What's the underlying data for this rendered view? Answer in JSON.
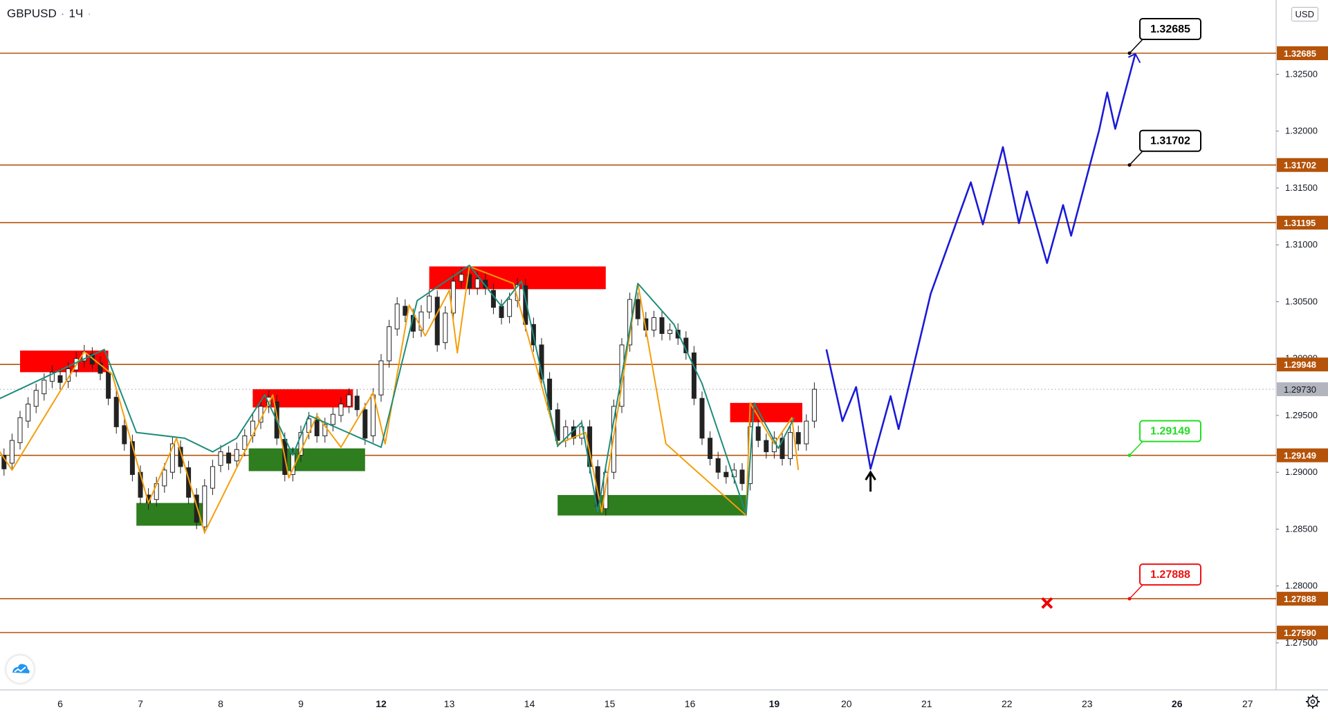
{
  "header": {
    "symbol": "GBPUSD",
    "interval": "1Ч",
    "currency_badge": "USD"
  },
  "chart_data": {
    "type": "candlestick",
    "title": "GBPUSD · 1Ч",
    "xlabel": "",
    "ylabel": "",
    "ylim": [
      1.272,
      1.3335
    ],
    "x_ticks": [
      {
        "label": "6",
        "day": 6,
        "bold": false
      },
      {
        "label": "7",
        "day": 7,
        "bold": false
      },
      {
        "label": "8",
        "day": 8,
        "bold": false
      },
      {
        "label": "9",
        "day": 9,
        "bold": false
      },
      {
        "label": "12",
        "day": 10,
        "bold": true
      },
      {
        "label": "13",
        "day": 10.85,
        "bold": false
      },
      {
        "label": "14",
        "day": 11.85,
        "bold": false
      },
      {
        "label": "15",
        "day": 12.85,
        "bold": false
      },
      {
        "label": "16",
        "day": 13.85,
        "bold": false
      },
      {
        "label": "19",
        "day": 14.9,
        "bold": true
      },
      {
        "label": "20",
        "day": 15.8,
        "bold": false
      },
      {
        "label": "21",
        "day": 16.8,
        "bold": false
      },
      {
        "label": "22",
        "day": 17.8,
        "bold": false
      },
      {
        "label": "23",
        "day": 18.8,
        "bold": false
      },
      {
        "label": "26",
        "day": 19.92,
        "bold": true
      },
      {
        "label": "27",
        "day": 20.8,
        "bold": false
      }
    ],
    "y_ticks": [
      "1.27500",
      "1.28000",
      "1.28500",
      "1.29000",
      "1.29500",
      "1.30000",
      "1.30500",
      "1.31000",
      "1.31500",
      "1.32000",
      "1.32500"
    ],
    "horizontal_levels": [
      {
        "price": 1.32685,
        "label": "1.32685"
      },
      {
        "price": 1.31702,
        "label": "1.31702"
      },
      {
        "price": 1.31195,
        "label": "1.31195"
      },
      {
        "price": 1.29948,
        "label": "1.29948"
      },
      {
        "price": 1.29149,
        "label": "1.29149"
      },
      {
        "price": 1.27888,
        "label": "1.27888"
      },
      {
        "price": 1.2759,
        "label": "1.27590"
      }
    ],
    "current_price": {
      "price": 1.2973,
      "label": "1.29730"
    },
    "price_callouts": [
      {
        "label": "1.32685",
        "price": 1.32685,
        "color": "#000000"
      },
      {
        "label": "1.31702",
        "price": 1.31702,
        "color": "#000000"
      },
      {
        "label": "1.29149",
        "price": 1.29149,
        "color": "#22dd22"
      },
      {
        "label": "1.27888",
        "price": 1.27888,
        "color": "#ee1111"
      }
    ],
    "supply_zones": [
      {
        "day_start": 4.95,
        "day_end": 5.12,
        "top": 1.2963,
        "bottom": 1.2944
      },
      {
        "day_start": 5.5,
        "day_end": 6.6,
        "top": 1.3007,
        "bottom": 1.2988
      },
      {
        "day_start": 8.4,
        "day_end": 9.65,
        "top": 1.2973,
        "bottom": 1.2957
      },
      {
        "day_start": 10.6,
        "day_end": 12.8,
        "top": 1.3081,
        "bottom": 1.3061
      },
      {
        "day_start": 14.35,
        "day_end": 15.25,
        "top": 1.2961,
        "bottom": 1.2944
      }
    ],
    "demand_zones": [
      {
        "day_start": 6.95,
        "day_end": 7.82,
        "top": 1.2873,
        "bottom": 1.2853
      },
      {
        "day_start": 8.35,
        "day_end": 9.8,
        "top": 1.2921,
        "bottom": 1.2901
      },
      {
        "day_start": 12.2,
        "day_end": 14.55,
        "top": 1.288,
        "bottom": 1.2862
      }
    ],
    "projection_path": [
      [
        15.55,
        1.3008
      ],
      [
        15.75,
        1.2945
      ],
      [
        15.92,
        1.2975
      ],
      [
        16.1,
        1.2903
      ],
      [
        16.35,
        1.2967
      ],
      [
        16.45,
        1.2938
      ],
      [
        16.85,
        1.3057
      ],
      [
        17.35,
        1.3155
      ],
      [
        17.5,
        1.3118
      ],
      [
        17.75,
        1.3186
      ],
      [
        17.95,
        1.3119
      ],
      [
        18.05,
        1.3147
      ],
      [
        18.3,
        1.3084
      ],
      [
        18.5,
        1.3135
      ],
      [
        18.6,
        1.3108
      ],
      [
        18.95,
        1.3201
      ],
      [
        19.05,
        1.3234
      ],
      [
        19.15,
        1.3202
      ],
      [
        19.4,
        1.3268
      ]
    ],
    "zigzag_orange": [
      [
        5.0,
        1.2944
      ],
      [
        5.4,
        1.2902
      ],
      [
        6.3,
        1.3006
      ],
      [
        6.65,
        1.2986
      ],
      [
        7.1,
        1.2873
      ],
      [
        7.45,
        1.293
      ],
      [
        7.8,
        1.2847
      ],
      [
        8.65,
        1.2968
      ],
      [
        8.85,
        1.2895
      ],
      [
        9.2,
        1.295
      ],
      [
        9.5,
        1.2922
      ],
      [
        9.9,
        1.297
      ],
      [
        10.05,
        1.2925
      ],
      [
        10.35,
        1.3047
      ],
      [
        10.55,
        1.302
      ],
      [
        10.85,
        1.306
      ],
      [
        10.95,
        1.3005
      ],
      [
        11.1,
        1.3081
      ],
      [
        11.65,
        1.3066
      ],
      [
        12.2,
        1.2925
      ],
      [
        12.55,
        1.2935
      ],
      [
        12.75,
        1.2865
      ],
      [
        13.2,
        1.3066
      ],
      [
        13.55,
        1.2925
      ],
      [
        14.55,
        1.2862
      ],
      [
        14.6,
        1.2961
      ],
      [
        14.9,
        1.2925
      ],
      [
        15.12,
        1.2948
      ],
      [
        15.2,
        1.2902
      ]
    ],
    "zigzag_teal": [
      [
        4.95,
        1.2955
      ],
      [
        6.55,
        1.3008
      ],
      [
        6.95,
        1.2935
      ],
      [
        7.55,
        1.293
      ],
      [
        7.9,
        1.2918
      ],
      [
        8.2,
        1.293
      ],
      [
        8.55,
        1.2968
      ],
      [
        8.9,
        1.2915
      ],
      [
        9.1,
        1.295
      ],
      [
        10.0,
        1.2922
      ],
      [
        10.45,
        1.3051
      ],
      [
        11.1,
        1.3082
      ],
      [
        11.5,
        1.3046
      ],
      [
        11.75,
        1.3068
      ],
      [
        12.2,
        1.2923
      ],
      [
        12.5,
        1.2944
      ],
      [
        12.7,
        1.2865
      ],
      [
        13.2,
        1.3066
      ],
      [
        13.65,
        1.303
      ],
      [
        14.0,
        1.2978
      ],
      [
        14.55,
        1.2863
      ],
      [
        14.65,
        1.2961
      ],
      [
        14.95,
        1.2921
      ],
      [
        15.15,
        1.2948
      ]
    ],
    "candles": [
      [
        5.0,
        1.2955,
        1.2942
      ],
      [
        5.1,
        1.294,
        1.2922
      ],
      [
        5.2,
        1.2928,
        1.2912
      ],
      [
        5.3,
        1.2915,
        1.2903
      ],
      [
        5.4,
        1.2908,
        1.2928
      ],
      [
        5.5,
        1.2926,
        1.2948
      ],
      [
        5.6,
        1.2945,
        1.296
      ],
      [
        5.7,
        1.2958,
        1.2972
      ],
      [
        5.8,
        1.2969,
        1.2981
      ],
      [
        5.9,
        1.298,
        1.2988
      ],
      [
        6.0,
        1.2985,
        1.2979
      ],
      [
        6.1,
        1.298,
        1.2991
      ],
      [
        6.2,
        1.299,
        1.3
      ],
      [
        6.3,
        1.2998,
        1.3006
      ],
      [
        6.4,
        1.3004,
        1.2995
      ],
      [
        6.5,
        1.2996,
        1.2987
      ],
      [
        6.6,
        1.2988,
        1.2965
      ],
      [
        6.7,
        1.2966,
        1.294
      ],
      [
        6.8,
        1.2941,
        1.2925
      ],
      [
        6.9,
        1.2927,
        1.2898
      ],
      [
        7.0,
        1.29,
        1.2878
      ],
      [
        7.1,
        1.288,
        1.2873
      ],
      [
        7.2,
        1.2876,
        1.289
      ],
      [
        7.3,
        1.2888,
        1.2902
      ],
      [
        7.4,
        1.29,
        1.2925
      ],
      [
        7.5,
        1.2922,
        1.2905
      ],
      [
        7.6,
        1.2904,
        1.2878
      ],
      [
        7.7,
        1.288,
        1.2856
      ],
      [
        7.8,
        1.2852,
        1.2888
      ],
      [
        7.9,
        1.2886,
        1.2905
      ],
      [
        8.0,
        1.2906,
        1.2918
      ],
      [
        8.1,
        1.2917,
        1.2908
      ],
      [
        8.2,
        1.291,
        1.292
      ],
      [
        8.3,
        1.292,
        1.2932
      ],
      [
        8.4,
        1.2932,
        1.2945
      ],
      [
        8.5,
        1.2944,
        1.2958
      ],
      [
        8.6,
        1.2958,
        1.2966
      ],
      [
        8.7,
        1.2962,
        1.293
      ],
      [
        8.8,
        1.2929,
        1.2898
      ],
      [
        8.9,
        1.2898,
        1.2916
      ],
      [
        9.0,
        1.2915,
        1.2935
      ],
      [
        9.1,
        1.2935,
        1.2947
      ],
      [
        9.2,
        1.2946,
        1.2932
      ],
      [
        9.3,
        1.2932,
        1.2942
      ],
      [
        9.4,
        1.2942,
        1.2951
      ],
      [
        9.5,
        1.295,
        1.296
      ],
      [
        9.6,
        1.2958,
        1.2968
      ],
      [
        9.7,
        1.2967,
        1.2955
      ],
      [
        9.8,
        1.2955,
        1.293
      ],
      [
        9.9,
        1.2932,
        1.2968
      ],
      [
        10.0,
        1.2968,
        1.2998
      ],
      [
        10.1,
        1.2998,
        1.3028
      ],
      [
        10.2,
        1.3026,
        1.3048
      ],
      [
        10.3,
        1.3046,
        1.3038
      ],
      [
        10.4,
        1.3038,
        1.3024
      ],
      [
        10.5,
        1.3025,
        1.3041
      ],
      [
        10.6,
        1.3041,
        1.3055
      ],
      [
        10.7,
        1.3054,
        1.3012
      ],
      [
        10.8,
        1.3014,
        1.304
      ],
      [
        10.9,
        1.304,
        1.3068
      ],
      [
        11.0,
        1.3068,
        1.3074
      ],
      [
        11.1,
        1.3074,
        1.3062
      ],
      [
        11.2,
        1.3062,
        1.307
      ],
      [
        11.3,
        1.3069,
        1.3062
      ],
      [
        11.4,
        1.306,
        1.3045
      ],
      [
        11.5,
        1.3046,
        1.3036
      ],
      [
        11.6,
        1.3037,
        1.3052
      ],
      [
        11.7,
        1.3051,
        1.3065
      ],
      [
        11.8,
        1.3064,
        1.303
      ],
      [
        11.9,
        1.303,
        1.3012
      ],
      [
        12.0,
        1.3012,
        1.2982
      ],
      [
        12.1,
        1.2982,
        1.2955
      ],
      [
        12.2,
        1.2955,
        1.2928
      ],
      [
        12.3,
        1.2928,
        1.294
      ],
      [
        12.4,
        1.294,
        1.293
      ],
      [
        12.5,
        1.293,
        1.294
      ],
      [
        12.6,
        1.294,
        1.2905
      ],
      [
        12.7,
        1.2905,
        1.287
      ],
      [
        12.8,
        1.2868,
        1.29
      ],
      [
        12.9,
        1.29,
        1.2958
      ],
      [
        13.0,
        1.2958,
        1.3012
      ],
      [
        13.1,
        1.3012,
        1.3052
      ],
      [
        13.2,
        1.3052,
        1.3035
      ],
      [
        13.3,
        1.3035,
        1.3025
      ],
      [
        13.4,
        1.3025,
        1.3036
      ],
      [
        13.5,
        1.3036,
        1.3022
      ],
      [
        13.6,
        1.3022,
        1.3025
      ],
      [
        13.7,
        1.3025,
        1.3018
      ],
      [
        13.8,
        1.3018,
        1.3005
      ],
      [
        13.9,
        1.3005,
        1.2965
      ],
      [
        14.0,
        1.2965,
        1.293
      ],
      [
        14.1,
        1.293,
        1.2912
      ],
      [
        14.2,
        1.2912,
        1.29
      ],
      [
        14.3,
        1.29,
        1.2896
      ],
      [
        14.4,
        1.2896,
        1.2902
      ],
      [
        14.5,
        1.2902,
        1.289
      ],
      [
        14.6,
        1.289,
        1.294
      ],
      [
        14.7,
        1.294,
        1.2928
      ],
      [
        14.8,
        1.2928,
        1.2918
      ],
      [
        14.9,
        1.2918,
        1.293
      ],
      [
        15.0,
        1.293,
        1.2912
      ],
      [
        15.1,
        1.2912,
        1.2935
      ],
      [
        15.2,
        1.2935,
        1.2925
      ],
      [
        15.3,
        1.2925,
        1.2945
      ],
      [
        15.4,
        1.2945,
        1.2973
      ]
    ],
    "annotations": [
      {
        "type": "arrow-up",
        "day": 16.1,
        "price": 1.2883
      },
      {
        "type": "cross",
        "day": 18.3,
        "price": 1.2785
      }
    ]
  }
}
